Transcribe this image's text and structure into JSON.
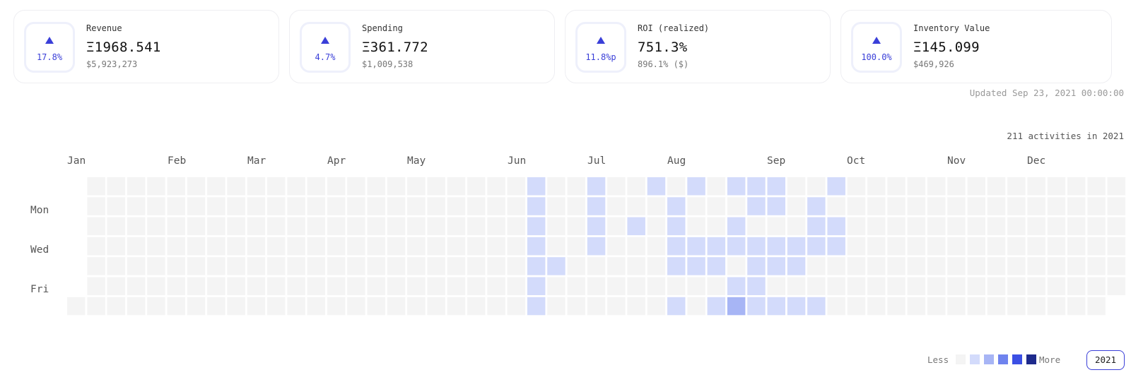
{
  "stats": [
    {
      "label": "Revenue",
      "value": "Ξ1968.541",
      "sub": "$5,923,273",
      "change": "17.8%"
    },
    {
      "label": "Spending",
      "value": "Ξ361.772",
      "sub": "$1,009,538",
      "change": "4.7%"
    },
    {
      "label": "ROI (realized)",
      "value": "751.3%",
      "sub": "896.1% ($)",
      "change": "11.8%p"
    },
    {
      "label": "Inventory Value",
      "value": "Ξ145.099",
      "sub": "$469,926",
      "change": "100.0%"
    }
  ],
  "updated": "Updated Sep 23, 2021 00:00:00",
  "activity_summary": "211 activities in 2021",
  "months": [
    "Jan",
    "Feb",
    "Mar",
    "Apr",
    "May",
    "Jun",
    "Jul",
    "Aug",
    "Sep",
    "Oct",
    "Nov",
    "Dec"
  ],
  "day_labels": [
    "Mon",
    "Wed",
    "Fri"
  ],
  "legend": {
    "less": "Less",
    "more": "More",
    "colors": [
      "#f4f4f4",
      "#d3dbfb",
      "#a7b5f5",
      "#6f83ee",
      "#3b4fe4",
      "#1e2a8c"
    ]
  },
  "year_button": "2021",
  "colors": {
    "accent": "#3a3fd8"
  },
  "heatmap": {
    "weeks": 53,
    "days_per_week": 7,
    "first_day_row": 6,
    "active_cells": [
      [
        23,
        0,
        1
      ],
      [
        23,
        1,
        1
      ],
      [
        23,
        2,
        1
      ],
      [
        23,
        3,
        1
      ],
      [
        23,
        4,
        1
      ],
      [
        23,
        5,
        1
      ],
      [
        23,
        6,
        1
      ],
      [
        24,
        4,
        1
      ],
      [
        26,
        0,
        1
      ],
      [
        26,
        1,
        1
      ],
      [
        26,
        2,
        1
      ],
      [
        26,
        3,
        1
      ],
      [
        28,
        2,
        1
      ],
      [
        29,
        0,
        1
      ],
      [
        30,
        1,
        1
      ],
      [
        30,
        2,
        1
      ],
      [
        30,
        3,
        1
      ],
      [
        30,
        4,
        1
      ],
      [
        30,
        6,
        1
      ],
      [
        31,
        0,
        1
      ],
      [
        31,
        3,
        1
      ],
      [
        31,
        4,
        1
      ],
      [
        32,
        3,
        1
      ],
      [
        32,
        4,
        1
      ],
      [
        32,
        6,
        1
      ],
      [
        33,
        0,
        1
      ],
      [
        33,
        2,
        1
      ],
      [
        33,
        3,
        1
      ],
      [
        33,
        5,
        1
      ],
      [
        33,
        6,
        2
      ],
      [
        34,
        0,
        1
      ],
      [
        34,
        1,
        1
      ],
      [
        34,
        3,
        1
      ],
      [
        34,
        4,
        1
      ],
      [
        34,
        5,
        1
      ],
      [
        34,
        6,
        1
      ],
      [
        35,
        0,
        1
      ],
      [
        35,
        1,
        1
      ],
      [
        35,
        3,
        1
      ],
      [
        35,
        4,
        1
      ],
      [
        35,
        6,
        1
      ],
      [
        36,
        3,
        1
      ],
      [
        36,
        4,
        1
      ],
      [
        36,
        6,
        1
      ],
      [
        37,
        1,
        1
      ],
      [
        37,
        2,
        1
      ],
      [
        37,
        3,
        1
      ],
      [
        37,
        6,
        1
      ],
      [
        38,
        0,
        1
      ],
      [
        38,
        2,
        1
      ],
      [
        38,
        3,
        1
      ]
    ]
  }
}
